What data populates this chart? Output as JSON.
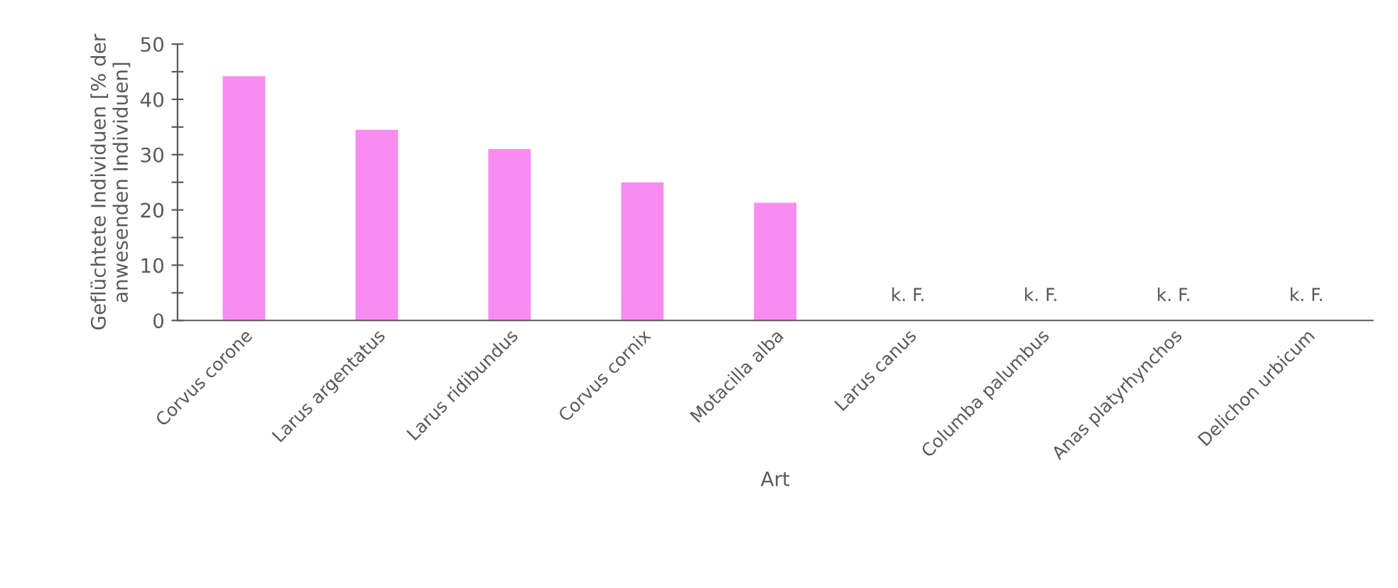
{
  "chart_data": {
    "type": "bar",
    "xlabel": "Art",
    "ylabel": "Geflüchtete Individuen [% der anwesenden Individuen]",
    "categories": [
      "Corvus corone",
      "Larus argentatus",
      "Larus ridibundus",
      "Corvus cornix",
      "Motacilla alba",
      "Larus canus",
      "Columba palumbus",
      "Anas platyrhynchos",
      "Delichon urbicum"
    ],
    "values": [
      44.2,
      34.5,
      31,
      25,
      21.3,
      0,
      0,
      0,
      0
    ],
    "value_labels": [
      null,
      null,
      null,
      null,
      null,
      "k. F.",
      "k. F.",
      "k. F.",
      "k. F."
    ],
    "color": "#f98cf0",
    "ylim": [
      0,
      50
    ],
    "yticks": [
      0,
      {
        "value": 5,
        "label": null
      },
      10,
      {
        "value": 15,
        "label": null
      },
      20,
      {
        "value": 25,
        "label": null
      },
      30,
      {
        "value": 35,
        "label": null
      },
      40,
      {
        "value": 45,
        "label": null
      },
      50
    ],
    "grid": false,
    "legend": false
  }
}
